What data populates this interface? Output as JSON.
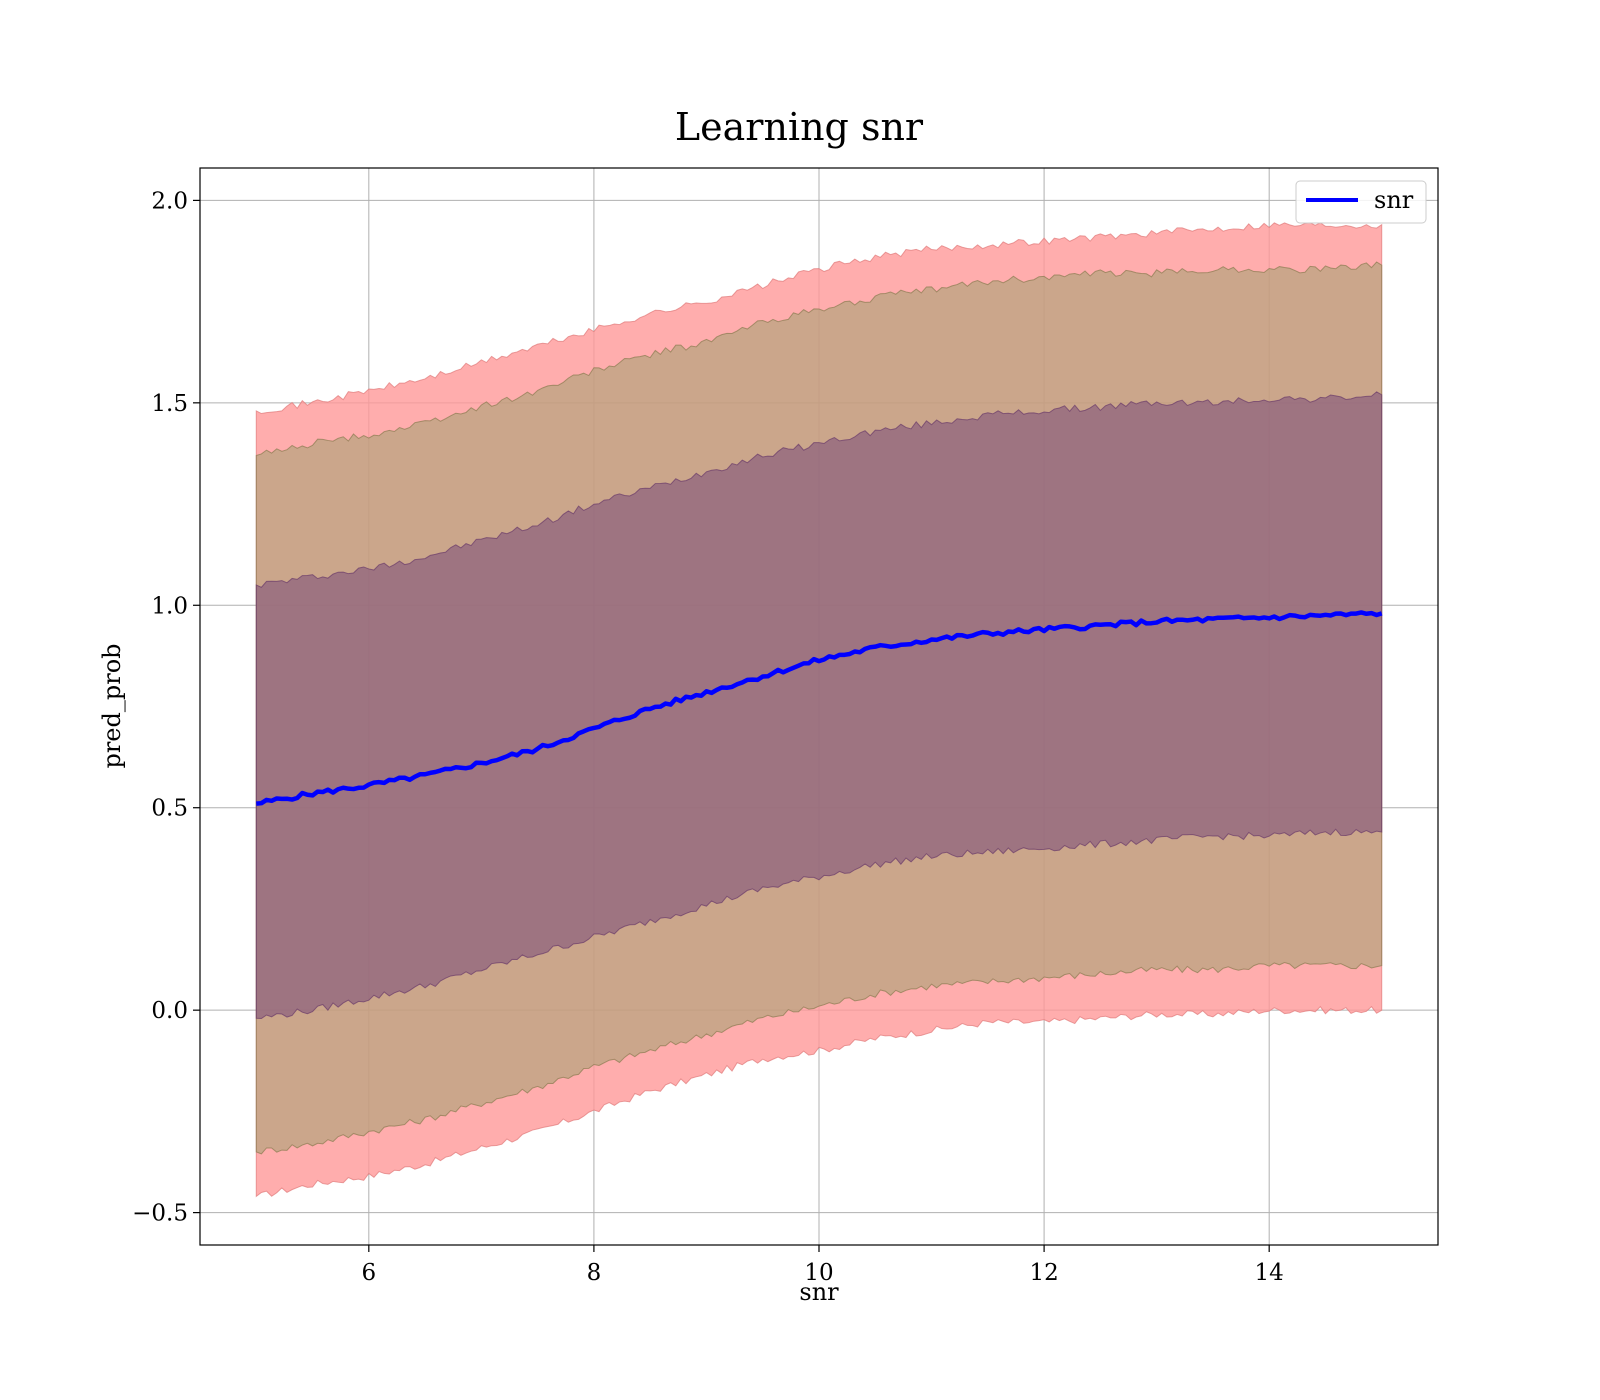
{
  "chart_data": {
    "type": "area",
    "title": "Learning snr",
    "xlabel": "snr",
    "ylabel": "pred_prob",
    "xlim": [
      4.5,
      15.5
    ],
    "ylim": [
      -0.58,
      2.08
    ],
    "x_ticks": [
      6,
      8,
      10,
      12,
      14
    ],
    "x_tick_labels": [
      "6",
      "8",
      "10",
      "12",
      "14"
    ],
    "y_ticks": [
      -0.5,
      0.0,
      0.5,
      1.0,
      1.5,
      2.0
    ],
    "y_tick_labels": [
      "−0.5",
      "0.0",
      "0.5",
      "1.0",
      "1.5",
      "2.0"
    ],
    "grid": true,
    "legend": {
      "placement": "top-right",
      "entries": [
        "snr"
      ]
    },
    "colors": {
      "line": "#0000ff",
      "band_outer": "#ff9999",
      "band_middle": "#a0a070",
      "band_inner": "#7a4a7a",
      "grid": "#b0b0b0"
    },
    "x": [
      5,
      5.5,
      6,
      6.5,
      7,
      7.5,
      8,
      8.5,
      9,
      9.5,
      10,
      10.5,
      11,
      11.5,
      12,
      12.5,
      13,
      13.5,
      14,
      14.5,
      15
    ],
    "series": [
      {
        "name": "snr",
        "values": [
          0.51,
          0.535,
          0.555,
          0.58,
          0.61,
          0.645,
          0.695,
          0.745,
          0.785,
          0.825,
          0.865,
          0.895,
          0.915,
          0.93,
          0.94,
          0.95,
          0.96,
          0.965,
          0.97,
          0.975,
          0.98
        ]
      }
    ],
    "bands": [
      {
        "level": "outer",
        "lower": [
          -0.46,
          -0.43,
          -0.41,
          -0.38,
          -0.34,
          -0.3,
          -0.25,
          -0.2,
          -0.16,
          -0.12,
          -0.1,
          -0.07,
          -0.05,
          -0.03,
          -0.03,
          -0.02,
          -0.01,
          -0.01,
          0.0,
          0.0,
          0.0
        ],
        "upper": [
          1.48,
          1.5,
          1.53,
          1.56,
          1.6,
          1.64,
          1.68,
          1.72,
          1.75,
          1.79,
          1.83,
          1.86,
          1.88,
          1.89,
          1.9,
          1.91,
          1.92,
          1.93,
          1.94,
          1.94,
          1.94
        ]
      },
      {
        "level": "middle",
        "lower": [
          -0.35,
          -0.33,
          -0.3,
          -0.27,
          -0.23,
          -0.19,
          -0.14,
          -0.1,
          -0.06,
          -0.02,
          0.01,
          0.04,
          0.06,
          0.07,
          0.08,
          0.09,
          0.1,
          0.1,
          0.11,
          0.11,
          0.11
        ],
        "upper": [
          1.37,
          1.4,
          1.42,
          1.45,
          1.49,
          1.53,
          1.58,
          1.62,
          1.65,
          1.7,
          1.73,
          1.76,
          1.78,
          1.8,
          1.81,
          1.82,
          1.82,
          1.83,
          1.83,
          1.83,
          1.84
        ]
      },
      {
        "level": "inner",
        "lower": [
          -0.02,
          0.0,
          0.03,
          0.06,
          0.1,
          0.14,
          0.18,
          0.22,
          0.26,
          0.3,
          0.33,
          0.36,
          0.38,
          0.39,
          0.4,
          0.41,
          0.42,
          0.43,
          0.43,
          0.44,
          0.44
        ],
        "upper": [
          1.05,
          1.07,
          1.09,
          1.12,
          1.16,
          1.2,
          1.25,
          1.29,
          1.33,
          1.37,
          1.4,
          1.43,
          1.45,
          1.47,
          1.48,
          1.49,
          1.5,
          1.5,
          1.51,
          1.51,
          1.52
        ]
      }
    ]
  }
}
